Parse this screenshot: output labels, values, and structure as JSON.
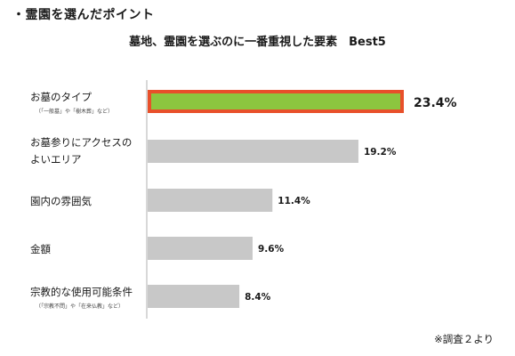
{
  "section_heading": "・霊園を選んだポイント",
  "footnote": "※調査２より",
  "chart_data": {
    "type": "bar",
    "orientation": "horizontal",
    "title": "墓地、霊園を選ぶのに一番重視した要素　Best5",
    "categories": [
      {
        "lines": [
          "お墓のタイプ"
        ],
        "note": "（「一般墓」や「樹木葬」など）"
      },
      {
        "lines": [
          "お墓参りにアクセスの",
          "よいエリア"
        ],
        "note": ""
      },
      {
        "lines": [
          "園内の雰囲気"
        ],
        "note": ""
      },
      {
        "lines": [
          "金額"
        ],
        "note": ""
      },
      {
        "lines": [
          "宗教的な使用可能条件"
        ],
        "note": "（「宗教不問」や「在来仏教」など）"
      }
    ],
    "values": [
      23.4,
      19.2,
      11.4,
      9.6,
      8.4
    ],
    "value_labels": [
      "23.4%",
      "19.2%",
      "11.4%",
      "9.6%",
      "8.4%"
    ],
    "unit": "%",
    "highlight_index": 0,
    "colors": {
      "highlight_fill": "#8cc63f",
      "highlight_border": "#e8502a",
      "bar_fill": "#c8c8c8",
      "axis": "#b0b0b0"
    },
    "xlim": [
      0,
      23.4
    ],
    "grid": false,
    "legend": "none"
  }
}
